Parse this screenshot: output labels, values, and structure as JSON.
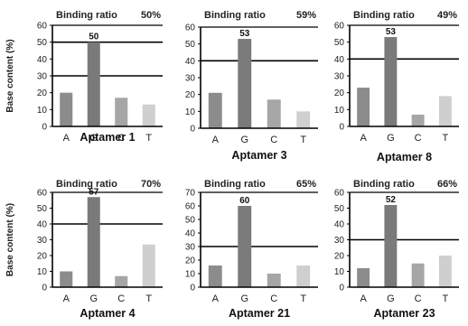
{
  "figure": {
    "binding_ratio_label": "Binding ratio",
    "ylabel": "Base content (%)"
  },
  "colors": {
    "A": "#8c8c8c",
    "G": "#7a7a7a",
    "C": "#a6a6a6",
    "T": "#cfcfcf",
    "axis": "#000000"
  },
  "chart_data": [
    {
      "type": "bar",
      "title": "Aptamer 1",
      "binding_ratio": "50%",
      "categories": [
        "A",
        "G",
        "C",
        "T"
      ],
      "values": [
        20,
        50,
        17,
        13
      ],
      "bar_labels": [
        "",
        "50",
        "",
        ""
      ],
      "ylabel": "Base content (%)",
      "ylim": [
        0,
        60
      ],
      "yticks": [
        0,
        10,
        20,
        30,
        40,
        50,
        60
      ],
      "hlines": [
        30,
        50
      ]
    },
    {
      "type": "bar",
      "title": "Aptamer 3",
      "binding_ratio": "59%",
      "categories": [
        "A",
        "G",
        "C",
        "T"
      ],
      "values": [
        21,
        53,
        17,
        10
      ],
      "bar_labels": [
        "",
        "53",
        "",
        ""
      ],
      "ylabel": "",
      "ylim": [
        0,
        60
      ],
      "yticks": [
        0,
        10,
        20,
        30,
        40,
        50,
        60
      ],
      "hlines": [
        40
      ]
    },
    {
      "type": "bar",
      "title": "Aptamer 8",
      "binding_ratio": "49%",
      "categories": [
        "A",
        "G",
        "C",
        "T"
      ],
      "values": [
        23,
        53,
        7,
        18
      ],
      "bar_labels": [
        "",
        "53",
        "",
        ""
      ],
      "ylabel": "",
      "ylim": [
        0,
        60
      ],
      "yticks": [
        0,
        10,
        20,
        30,
        40,
        50,
        60
      ],
      "hlines": [
        40
      ]
    },
    {
      "type": "bar",
      "title": "Aptamer 4",
      "binding_ratio": "70%",
      "categories": [
        "A",
        "G",
        "C",
        "T"
      ],
      "values": [
        10,
        57,
        7,
        27
      ],
      "bar_labels": [
        "",
        "57",
        "",
        ""
      ],
      "ylabel": "Base content (%)",
      "ylim": [
        0,
        60
      ],
      "yticks": [
        0,
        10,
        20,
        30,
        40,
        50,
        60
      ],
      "hlines": [
        40
      ]
    },
    {
      "type": "bar",
      "title": "Aptamer 21",
      "binding_ratio": "65%",
      "categories": [
        "A",
        "G",
        "C",
        "T"
      ],
      "values": [
        16,
        60,
        10,
        16
      ],
      "bar_labels": [
        "",
        "60",
        "",
        ""
      ],
      "ylabel": "",
      "ylim": [
        0,
        70
      ],
      "yticks": [
        0,
        10,
        20,
        30,
        40,
        50,
        60,
        70
      ],
      "hlines": [
        30
      ]
    },
    {
      "type": "bar",
      "title": "Aptamer 23",
      "binding_ratio": "66%",
      "categories": [
        "A",
        "G",
        "C",
        "T"
      ],
      "values": [
        12,
        52,
        15,
        20
      ],
      "bar_labels": [
        "",
        "52",
        "",
        ""
      ],
      "ylabel": "",
      "ylim": [
        0,
        60
      ],
      "yticks": [
        0,
        10,
        20,
        30,
        40,
        50,
        60
      ],
      "hlines": [
        30
      ]
    }
  ]
}
